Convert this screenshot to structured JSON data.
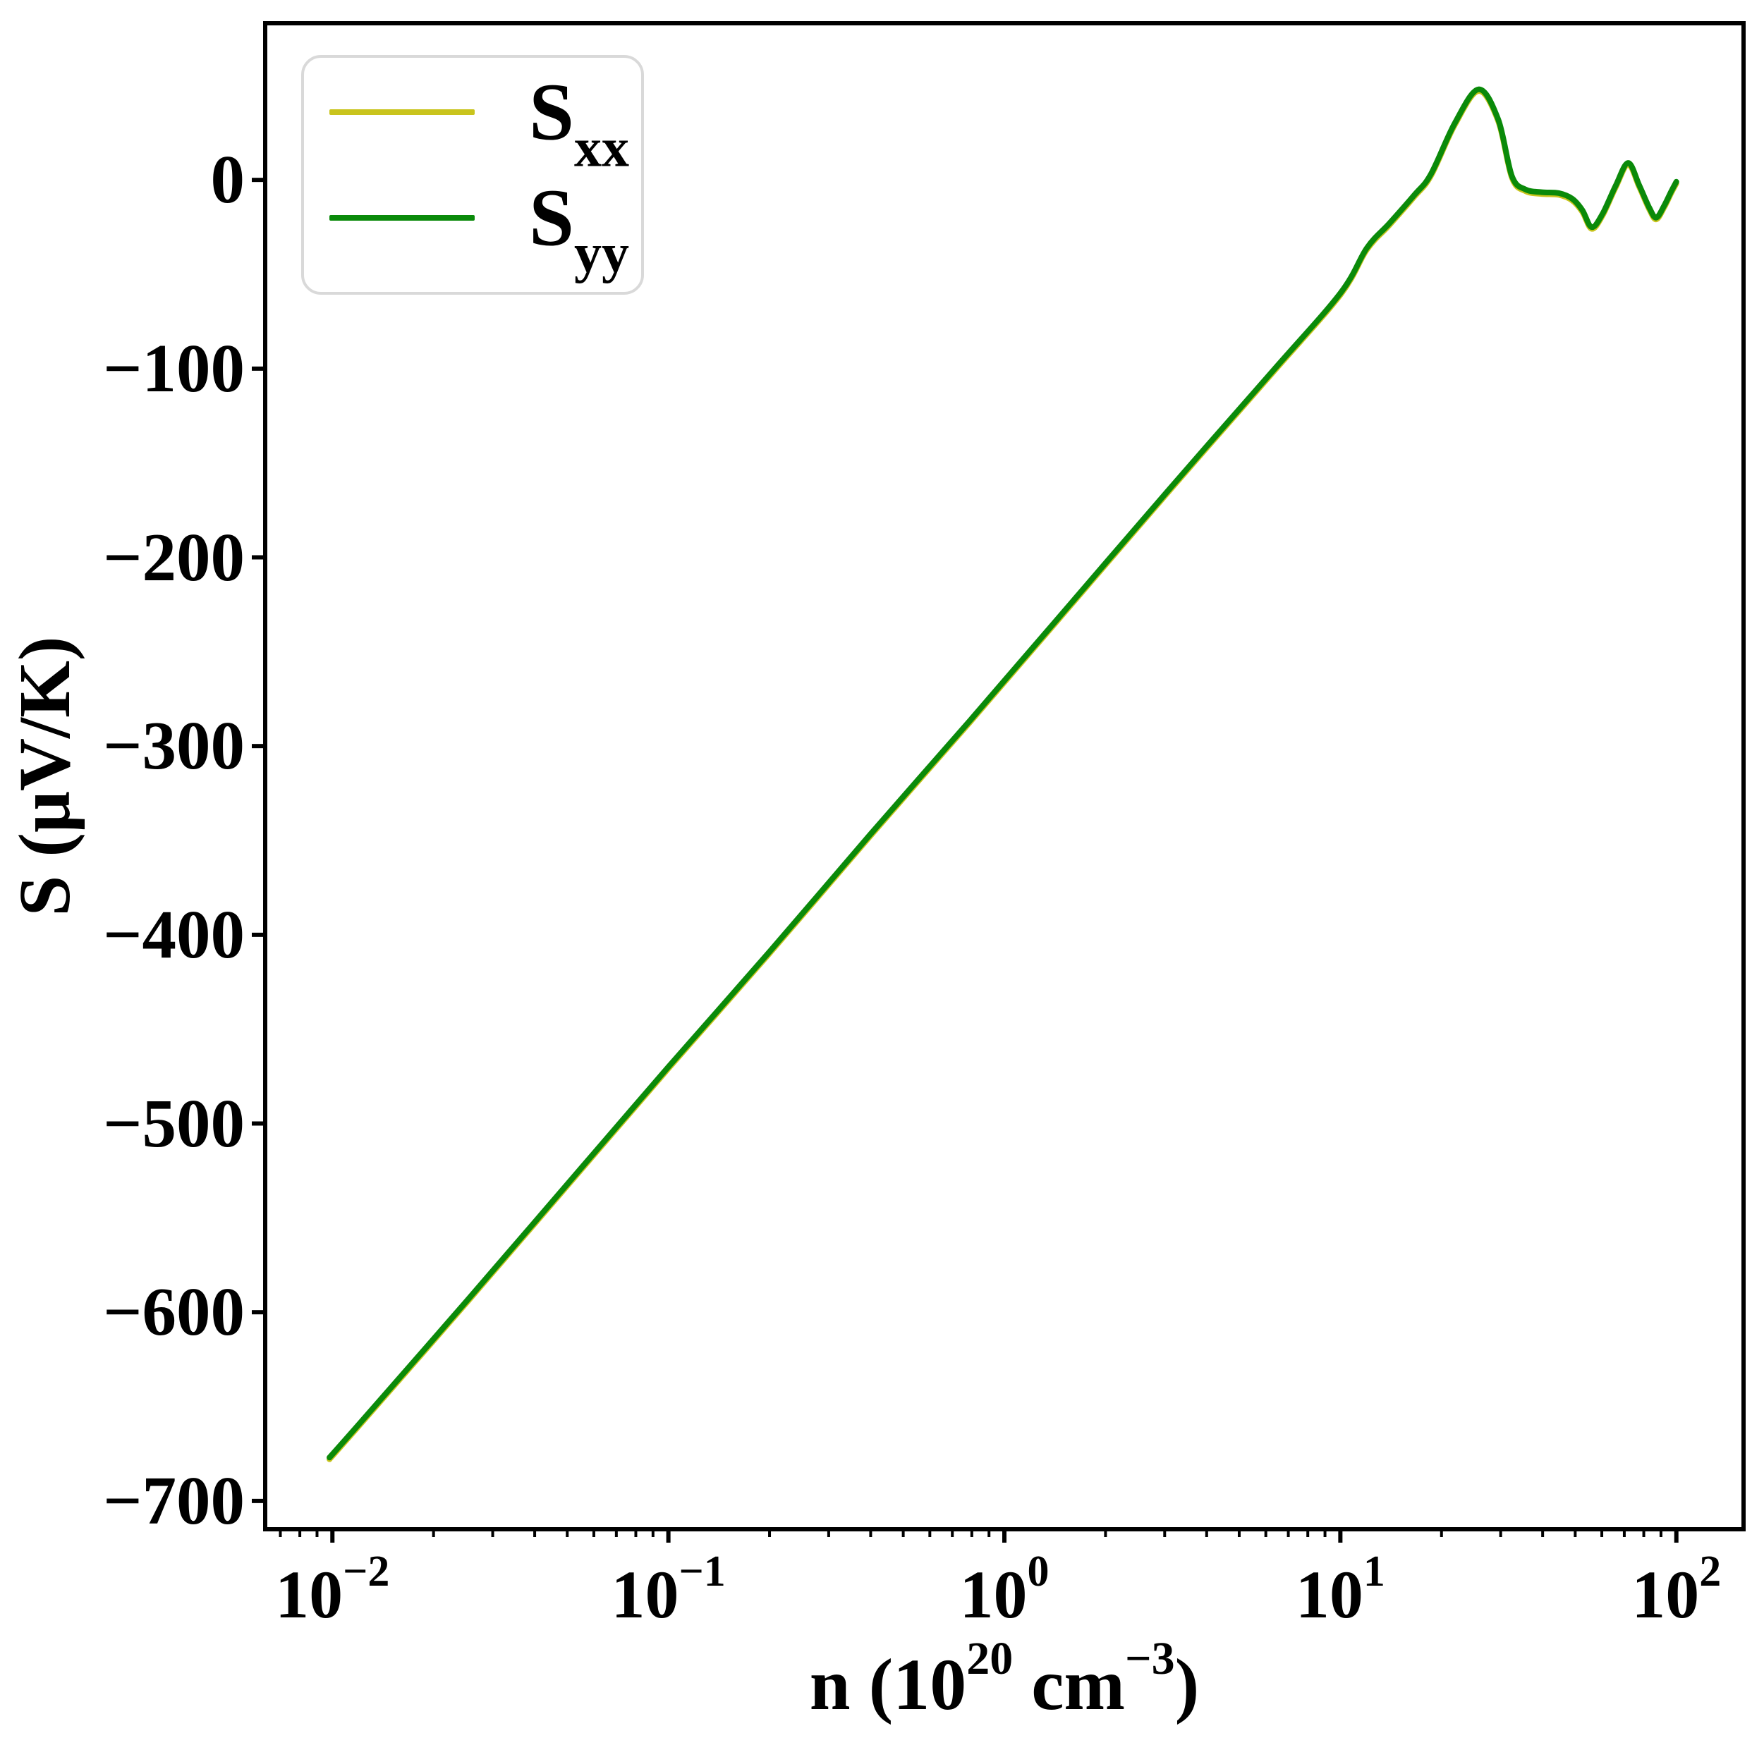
{
  "figure": {
    "background": "#ffffff",
    "frame_color": "#000000",
    "text_color": "#000000"
  },
  "axes": {
    "ylabel": "S (μV/K)",
    "xlabel_parts": [
      {
        "text": "n (10",
        "sup": false
      },
      {
        "text": "20",
        "sup": true
      },
      {
        "text": " cm",
        "sup": false
      },
      {
        "text": "−3",
        "sup": true
      },
      {
        "text": ")",
        "sup": false
      }
    ],
    "x_tick_labels": [
      {
        "base": "10",
        "exp": "−2",
        "log": -2
      },
      {
        "base": "10",
        "exp": "−1",
        "log": -1
      },
      {
        "base": "10",
        "exp": "0",
        "log": 0
      },
      {
        "base": "10",
        "exp": "1",
        "log": 1
      },
      {
        "base": "10",
        "exp": "2",
        "log": 2
      }
    ],
    "y_tick_labels": [
      {
        "label": "0",
        "value": 0
      },
      {
        "label": "−100",
        "value": -100
      },
      {
        "label": "−200",
        "value": -200
      },
      {
        "label": "−300",
        "value": -300
      },
      {
        "label": "−400",
        "value": -400
      },
      {
        "label": "−500",
        "value": -500
      },
      {
        "label": "−600",
        "value": -600
      },
      {
        "label": "−700",
        "value": -700
      }
    ]
  },
  "legend": {
    "border_color": "#d9d9d9",
    "items": [
      {
        "name": "S",
        "sub": "xx",
        "color": "#c9c41d"
      },
      {
        "name": "S",
        "sub": "yy",
        "color": "#0a8a0a"
      }
    ]
  },
  "chart_data": {
    "type": "line",
    "x_scale": "log",
    "xlabel": "n (10^20 cm^-3)",
    "ylabel": "S (uV/K)",
    "xlim_log10": [
      -2.2,
      2.2
    ],
    "ylim": [
      -715,
      83
    ],
    "x_major_ticks": [
      0.01,
      0.1,
      1,
      10,
      100
    ],
    "y_major_ticks": [
      0,
      -100,
      -200,
      -300,
      -400,
      -500,
      -600,
      -700
    ],
    "grid": false,
    "legend_position": "upper left",
    "series": [
      {
        "name": "S_xx",
        "color": "#c9c41d",
        "points": [
          [
            0.0098,
            -677
          ],
          [
            0.0126,
            -655
          ],
          [
            0.0251,
            -594
          ],
          [
            0.0501,
            -532
          ],
          [
            0.1,
            -470
          ],
          [
            0.2,
            -409
          ],
          [
            0.398,
            -347
          ],
          [
            0.794,
            -286
          ],
          [
            1.585,
            -224
          ],
          [
            3.162,
            -162
          ],
          [
            6.31,
            -101
          ],
          [
            10,
            -60
          ],
          [
            12,
            -36
          ],
          [
            14,
            -23
          ],
          [
            16.6,
            -8
          ],
          [
            18.6,
            3
          ],
          [
            21.9,
            30
          ],
          [
            25.8,
            48
          ],
          [
            29.5,
            32
          ],
          [
            32.4,
            2
          ],
          [
            35.5,
            -5
          ],
          [
            39.8,
            -6.5
          ],
          [
            44.7,
            -7
          ],
          [
            49,
            -10
          ],
          [
            52.5,
            -16
          ],
          [
            56,
            -25
          ],
          [
            60.3,
            -18
          ],
          [
            66,
            -3
          ],
          [
            71.9,
            9
          ],
          [
            77.6,
            -3
          ],
          [
            83.2,
            -15
          ],
          [
            87.1,
            -20
          ],
          [
            91.8,
            -14
          ],
          [
            96.6,
            -6
          ],
          [
            100,
            -1
          ]
        ]
      },
      {
        "name": "S_yy",
        "color": "#0a8a0a",
        "points": [
          [
            0.0098,
            -677
          ],
          [
            0.0126,
            -655
          ],
          [
            0.0251,
            -594
          ],
          [
            0.0501,
            -532
          ],
          [
            0.1,
            -470
          ],
          [
            0.2,
            -409
          ],
          [
            0.398,
            -347
          ],
          [
            0.794,
            -286
          ],
          [
            1.585,
            -224
          ],
          [
            3.162,
            -162
          ],
          [
            6.31,
            -101
          ],
          [
            10,
            -60
          ],
          [
            12,
            -36
          ],
          [
            14,
            -23
          ],
          [
            16.6,
            -8
          ],
          [
            18.6,
            3
          ],
          [
            21.9,
            30
          ],
          [
            25.8,
            48
          ],
          [
            29.5,
            32
          ],
          [
            32.4,
            2
          ],
          [
            35.5,
            -5
          ],
          [
            39.8,
            -6.5
          ],
          [
            44.7,
            -7
          ],
          [
            49,
            -10
          ],
          [
            52.5,
            -16
          ],
          [
            56,
            -25
          ],
          [
            60.3,
            -18
          ],
          [
            66,
            -3
          ],
          [
            71.9,
            9
          ],
          [
            77.6,
            -3
          ],
          [
            83.2,
            -15
          ],
          [
            87.1,
            -20
          ],
          [
            91.8,
            -14
          ],
          [
            96.6,
            -6
          ],
          [
            100,
            -1
          ]
        ]
      }
    ]
  }
}
